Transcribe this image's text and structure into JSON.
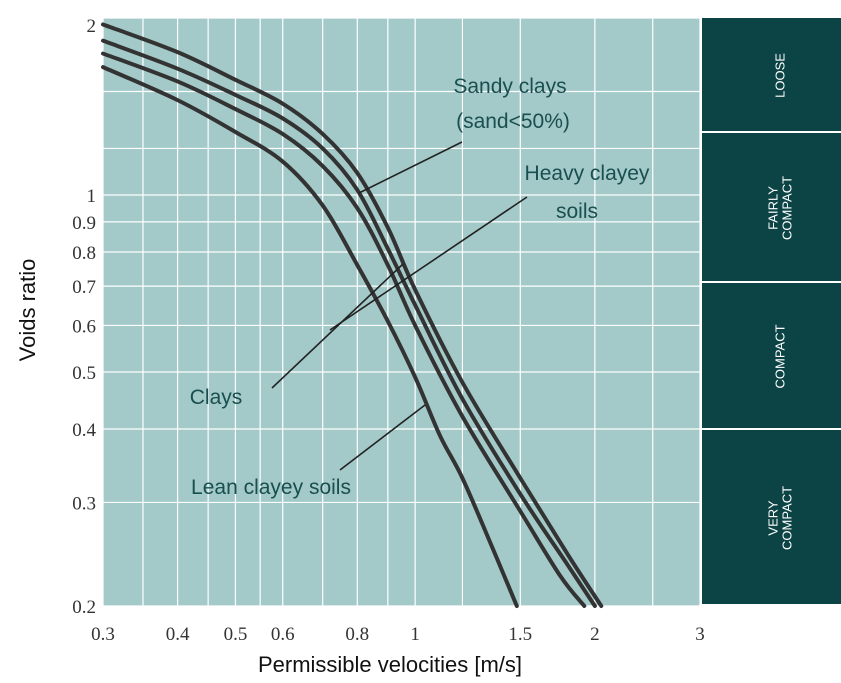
{
  "chart_data": {
    "type": "line",
    "title": "",
    "xlabel": "Permissible velocities [m/s]",
    "ylabel": "Voids ratio",
    "x_scale": "log",
    "y_scale": "log",
    "xlim": [
      0.3,
      3
    ],
    "ylim": [
      0.2,
      2
    ],
    "x_ticks": [
      0.3,
      0.4,
      0.5,
      0.6,
      0.8,
      1,
      1.5,
      2,
      3
    ],
    "x_tick_labels": [
      "0.3",
      "0.4",
      "0.5",
      "0.6",
      "0.8",
      "1",
      "1.5",
      "2",
      "3"
    ],
    "y_ticks": [
      0.2,
      0.3,
      0.4,
      0.5,
      0.6,
      0.7,
      0.8,
      0.9,
      1,
      2
    ],
    "y_tick_labels": [
      "0.2",
      "0.3",
      "0.4",
      "0.5",
      "0.6",
      "0.7",
      "0.8",
      "0.9",
      "1",
      "2"
    ],
    "grid": true,
    "series": [
      {
        "name": "Sandy clays (sand<50%)",
        "label_lines": [
          "Sandy clays",
          "(sand<50%)"
        ],
        "x": [
          0.3,
          0.4,
          0.5,
          0.6,
          0.7,
          0.8,
          0.9,
          1.0,
          1.2,
          1.5,
          1.8,
          2.05
        ],
        "y": [
          1.95,
          1.75,
          1.57,
          1.43,
          1.27,
          1.09,
          0.88,
          0.69,
          0.48,
          0.33,
          0.245,
          0.2
        ]
      },
      {
        "name": "Heavy clayey soils",
        "label_lines": [
          "Heavy clayey",
          "soils"
        ],
        "x": [
          0.3,
          0.4,
          0.5,
          0.6,
          0.7,
          0.8,
          0.9,
          1.0,
          1.2,
          1.5,
          1.8,
          2.0
        ],
        "y": [
          1.83,
          1.64,
          1.48,
          1.35,
          1.2,
          1.02,
          0.81,
          0.65,
          0.45,
          0.31,
          0.235,
          0.2
        ]
      },
      {
        "name": "Clays",
        "label_lines": [
          "Clays"
        ],
        "x": [
          0.3,
          0.4,
          0.5,
          0.6,
          0.7,
          0.8,
          0.9,
          1.0,
          1.2,
          1.5,
          1.75,
          1.92
        ],
        "y": [
          1.74,
          1.56,
          1.4,
          1.27,
          1.12,
          0.95,
          0.76,
          0.6,
          0.42,
          0.29,
          0.225,
          0.2
        ]
      },
      {
        "name": "Lean clayey soils",
        "label_lines": [
          "Lean clayey soils"
        ],
        "x": [
          0.3,
          0.4,
          0.5,
          0.6,
          0.7,
          0.8,
          0.9,
          1.0,
          1.1,
          1.2,
          1.35,
          1.48
        ],
        "y": [
          1.65,
          1.45,
          1.28,
          1.14,
          0.96,
          0.76,
          0.61,
          0.49,
          0.39,
          0.33,
          0.25,
          0.2
        ]
      }
    ],
    "density_bands": [
      {
        "lines": [
          "LOOSE"
        ]
      },
      {
        "lines": [
          "FAIRLY",
          "COMPACT"
        ]
      },
      {
        "lines": [
          "COMPACT"
        ]
      },
      {
        "lines": [
          "VERY",
          "COMPACT"
        ]
      }
    ],
    "colors": {
      "plot_bg": "#a3c9c9",
      "grid": "#ffffff",
      "curve": "#333333",
      "band_bg": "#0c4446",
      "label": "#1a4f4f"
    }
  }
}
